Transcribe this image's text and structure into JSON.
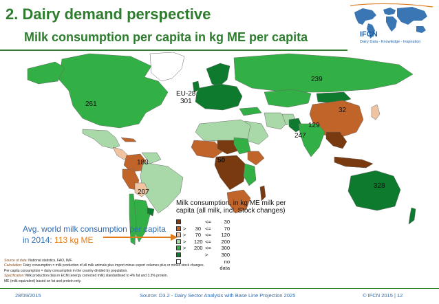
{
  "header": {
    "title": "2. Dairy demand perspective",
    "subtitle": "Milk consumption per capita in kg ME per capita"
  },
  "logo": {
    "name": "IFCN",
    "tagline": "Dairy Data - Knowledge - Inspiration"
  },
  "map_labels": {
    "north_america": "261",
    "eu_name": "EU-28",
    "eu_value": "301",
    "russia": "239",
    "china": "32",
    "west_asia": "129",
    "india": "247",
    "africa": "50",
    "south_america": "183",
    "argentina": "207",
    "australia": "328"
  },
  "legend": {
    "title": "Milk consumption, in kg ME milk per capita (all milk, incl. Stock changes)",
    "rows": [
      {
        "color": "#7a3a10",
        "op1": "",
        "lo": "",
        "op2": "<=",
        "hi": "30"
      },
      {
        "color": "#c0642a",
        "op1": ">",
        "lo": "30",
        "op2": "<=",
        "hi": "70"
      },
      {
        "color": "#f0c4a0",
        "op1": ">",
        "lo": "70",
        "op2": "<=",
        "hi": "120"
      },
      {
        "color": "#a9d8a9",
        "op1": ">",
        "lo": "120",
        "op2": "<=",
        "hi": "200"
      },
      {
        "color": "#33b045",
        "op1": ">",
        "lo": "200",
        "op2": "<=",
        "hi": "300"
      },
      {
        "color": "#0e7a2e",
        "op1": "",
        "lo": "",
        "op2": ">",
        "hi": "300"
      },
      {
        "color": "#ffffff",
        "op1": "",
        "lo": "",
        "op2": "",
        "hi": "no data"
      }
    ]
  },
  "average": {
    "line1": "Avg. world milk consumption per capita",
    "line2_prefix": "in 2014: ",
    "value": "113",
    "unit": "  kg ME"
  },
  "notes": [
    {
      "key": "Source of data:",
      "text": " National statistics, FAO, IMF."
    },
    {
      "key": "Calculation:",
      "text": " Dairy consumption = milk production of all milk animals plus import minus export volumes plus or minus stock changes."
    },
    {
      "key": "",
      "text": "Per capita consumption = dairy consumption in the country divided by population."
    },
    {
      "key": "Specification:",
      "text": " Milk production data in ECM (energy corrected milk) standardised to 4% fat and 3.3% protein."
    },
    {
      "key": "",
      "text": "ME (milk equivalent) based on fat and protein only."
    }
  ],
  "footer": {
    "date": "28/09/2015",
    "source": "Source: D3.2 - Dairy Sector Analysis with Base Line Projection 2025",
    "copyright": "© IFCN  2015 | 12"
  }
}
